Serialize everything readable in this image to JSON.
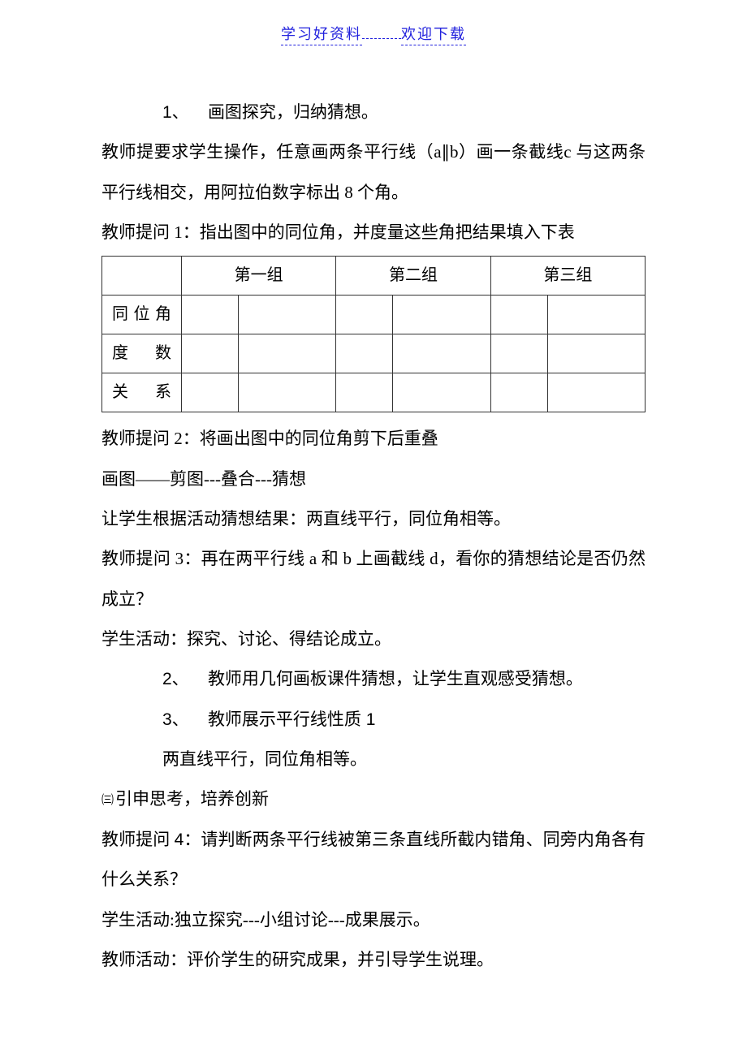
{
  "header": {
    "left": "学习好资料",
    "right": "欢迎下载"
  },
  "body": {
    "item1_num": "1、",
    "item1_text": "画图探究，归纳猜想。",
    "p1": "教师提要求学生操作，任意画两条平行线（a∥b）画一条截线c 与这两条平行线相交，用阿拉伯数字标出 8 个角。",
    "p2": "教师提问 1：指出图中的同位角，并度量这些角把结果填入下表",
    "table": {
      "headers": [
        "",
        "第一组",
        "第二组",
        "第三组"
      ],
      "rows": [
        "同位角",
        "度数",
        "关系"
      ]
    },
    "p3": "教师提问 2：将画出图中的同位角剪下后重叠",
    "p4": "画图——剪图---叠合---猜想",
    "p5": "让学生根据活动猜想结果：两直线平行，同位角相等。",
    "p6": "教师提问 3：再在两平行线 a 和 b 上画截线 d，看你的猜想结论是否仍然成立？",
    "p7": "学生活动：探究、讨论、得结论成立。",
    "item2_num": "2、",
    "item2_text": "教师用几何画板课件猜想，让学生直观感受猜想。",
    "item3_num": "3、",
    "item3_text": "教师展示平行线性质",
    "item3_tail": " 1",
    "p8": "两直线平行，同位角相等。",
    "sec3_mark": "㈢",
    "sec3_text": "引申思考，培养创新",
    "p9a": "教师提问 ",
    "p9b": "4",
    "p9c": "：请判断两条平行线被第三条直线所截内错角、同旁内角各有什么关系？",
    "p10": "学生活动:独立探究---小组讨论---成果展示。",
    "p11": "教师活动：评价学生的研究成果，并引导学生说理。"
  },
  "colors": {
    "link": "#2020dd",
    "text": "#000000",
    "border": "#333333",
    "background": "#ffffff"
  }
}
